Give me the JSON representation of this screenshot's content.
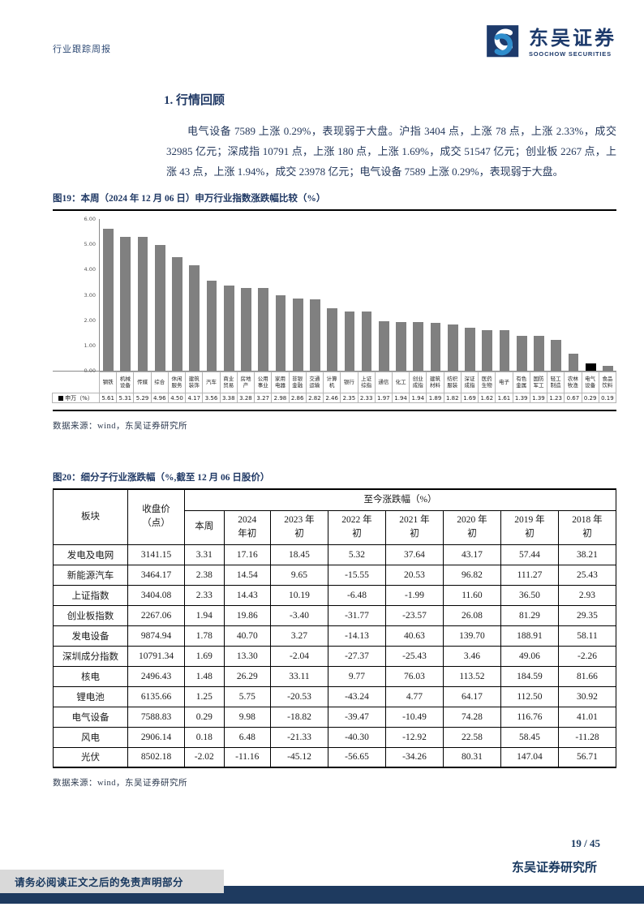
{
  "header": {
    "report_type": "行业跟踪周报",
    "brand_cn": "东吴证券",
    "brand_en": "SOOCHOW SECURITIES",
    "brand_navy": "#1d3a6b",
    "brand_blue": "#2f8dcc"
  },
  "section": {
    "title": "1.  行情回顾"
  },
  "body_paragraph": "电气设备 7589 上涨 0.29%，表现弱于大盘。沪指 3404 点，上涨 78 点，上涨 2.33%，成交 32985 亿元；深成指 10791 点，上涨 180 点，上涨 1.69%，成交 51547 亿元；创业板 2267 点，上涨 43 点，上涨 1.94%，成交 23978 亿元；电气设备 7589 上涨 0.29%，表现弱于大盘。",
  "figure19": {
    "caption": "图19：本周（2024 年 12 月 06 日）申万行业指数涨跌幅比较（%）",
    "source": "数据来源：wind，东吴证券研究所"
  },
  "chart_data": {
    "type": "bar",
    "title": "本周（2024 年 12 月 06 日）申万行业指数涨跌幅比较（%）",
    "series_name": "申万（%）",
    "categories": [
      "钢铁",
      "机械设备",
      "传媒",
      "综合",
      "休闲服务",
      "建筑装饰",
      "汽车",
      "商业贸易",
      "房地产",
      "公用事业",
      "家用电器",
      "非银金融",
      "交通运输",
      "计算机",
      "银行",
      "上证综指",
      "通信",
      "化工",
      "创业成指",
      "建筑材料",
      "纺织服装",
      "深证成指",
      "医药生物",
      "电子",
      "有色金属",
      "国防军工",
      "轻工制造",
      "农林牧渔",
      "电气设备",
      "食品饮料"
    ],
    "values": [
      5.61,
      5.31,
      5.29,
      4.96,
      4.5,
      4.17,
      3.56,
      3.38,
      3.28,
      3.27,
      2.98,
      2.86,
      2.82,
      2.46,
      2.35,
      2.33,
      1.97,
      1.94,
      1.94,
      1.89,
      1.82,
      1.69,
      1.62,
      1.61,
      1.39,
      1.39,
      1.23,
      0.67,
      0.29,
      0.19
    ],
    "xlabel": "",
    "ylabel": "",
    "ylim": [
      0,
      6
    ],
    "ytick_step": 1,
    "grid": false,
    "legend_position": "bottom-left",
    "bar_color": "#808080",
    "highlight_category": "电气设备",
    "highlight_color": "#000000"
  },
  "figure20": {
    "caption": "图20：细分子行业涨跌幅（%,截至 12 月 06 日股价）",
    "source": "数据来源：wind，东吴证券研究所",
    "table": {
      "col1": "板块",
      "col2": "收盘价\n（点）",
      "col_group_header": "至今涨跌幅（%）",
      "sub_headers": [
        "本周",
        "2024\n年初",
        "2023 年\n初",
        "2022 年\n初",
        "2021 年\n初",
        "2020 年\n初",
        "2019 年\n初",
        "2018 年\n初"
      ],
      "rows": [
        {
          "name": "发电及电网",
          "close": "3141.15",
          "vals": [
            "3.31",
            "17.16",
            "18.45",
            "5.32",
            "37.64",
            "43.17",
            "57.44",
            "38.21"
          ]
        },
        {
          "name": "新能源汽车",
          "close": "3464.17",
          "vals": [
            "2.38",
            "14.54",
            "9.65",
            "-15.55",
            "20.53",
            "96.82",
            "111.27",
            "25.43"
          ]
        },
        {
          "name": "上证指数",
          "close": "3404.08",
          "vals": [
            "2.33",
            "14.43",
            "10.19",
            "-6.48",
            "-1.99",
            "11.60",
            "36.50",
            "2.93"
          ]
        },
        {
          "name": "创业板指数",
          "close": "2267.06",
          "vals": [
            "1.94",
            "19.86",
            "-3.40",
            "-31.77",
            "-23.57",
            "26.08",
            "81.29",
            "29.35"
          ]
        },
        {
          "name": "发电设备",
          "close": "9874.94",
          "vals": [
            "1.78",
            "40.70",
            "3.27",
            "-14.13",
            "40.63",
            "139.70",
            "188.91",
            "58.11"
          ]
        },
        {
          "name": "深圳成分指数",
          "close": "10791.34",
          "vals": [
            "1.69",
            "13.30",
            "-2.04",
            "-27.37",
            "-25.43",
            "3.46",
            "49.06",
            "-2.26"
          ]
        },
        {
          "name": "核电",
          "close": "2496.43",
          "vals": [
            "1.48",
            "26.29",
            "33.11",
            "9.77",
            "76.03",
            "113.52",
            "184.59",
            "81.66"
          ]
        },
        {
          "name": "锂电池",
          "close": "6135.66",
          "vals": [
            "1.25",
            "5.75",
            "-20.53",
            "-43.24",
            "4.77",
            "64.17",
            "112.50",
            "30.92"
          ]
        },
        {
          "name": "电气设备",
          "close": "7588.83",
          "vals": [
            "0.29",
            "9.98",
            "-18.82",
            "-39.47",
            "-10.49",
            "74.28",
            "116.76",
            "41.01"
          ]
        },
        {
          "name": "风电",
          "close": "2906.14",
          "vals": [
            "0.18",
            "6.48",
            "-21.33",
            "-40.30",
            "-12.92",
            "22.58",
            "58.45",
            "-11.28"
          ]
        },
        {
          "name": "光伏",
          "close": "8502.18",
          "vals": [
            "-2.02",
            "-11.16",
            "-45.12",
            "-56.65",
            "-34.26",
            "80.31",
            "147.04",
            "56.71"
          ]
        }
      ]
    }
  },
  "footer": {
    "page_number": "19 / 45",
    "institute": "东吴证券研究所",
    "disclaimer": "请务必阅读正文之后的免责声明部分",
    "bar_color": "#1e3a5f"
  }
}
